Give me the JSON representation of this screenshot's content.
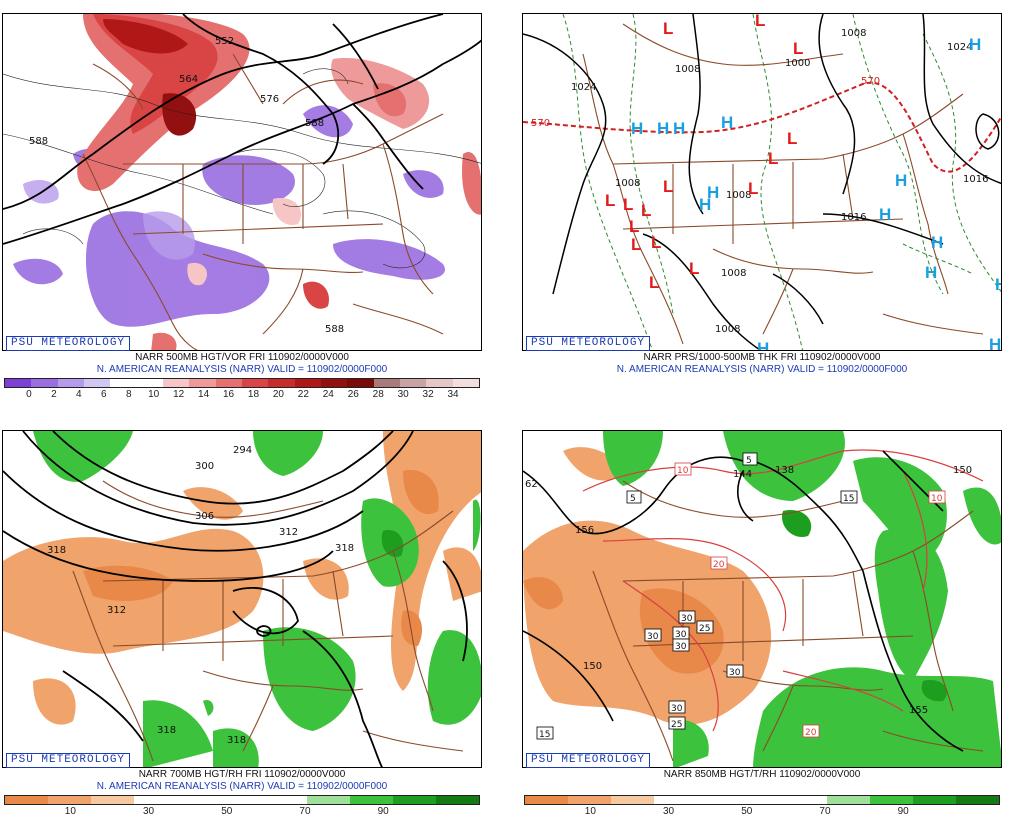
{
  "panels": [
    {
      "badge": "PSU METEOROLOGY",
      "line1": "NARR 500MB HGT/VOR FRI 110902/0000V000",
      "line2": "N. AMERICAN REANALYSIS (NARR) VALID = 110902/0000F000",
      "colorbar": {
        "colors": [
          "#7d3fd6",
          "#9a6ee0",
          "#b69bea",
          "#d2c6f2",
          "#ffffff",
          "#ffffff",
          "#f6c5c5",
          "#ee9a9a",
          "#e57070",
          "#d94545",
          "#c92a2a",
          "#b01818",
          "#931010",
          "#7a0a0a",
          "#a87a7a",
          "#c9a3a3",
          "#e6c7c7",
          "#f3dede"
        ],
        "ticks": [
          "0",
          "2",
          "4",
          "6",
          "8",
          "10",
          "12",
          "14",
          "16",
          "18",
          "20",
          "22",
          "24",
          "26",
          "28",
          "30",
          "32",
          "34"
        ]
      },
      "labels": [
        "552",
        "564",
        "576",
        "588",
        "588",
        "588"
      ]
    },
    {
      "badge": "PSU METEOROLOGY",
      "line1": "NARR PRS/1000-500MB THK FRI 110902/0000V000",
      "line2": "N. AMERICAN REANALYSIS (NARR) VALID = 110902/0000F000",
      "labels": [
        "1024",
        "1008",
        "1000",
        "1008",
        "1008",
        "1008",
        "1008",
        "1016",
        "1016",
        "1024",
        "570",
        "570",
        "1008"
      ],
      "H": "H",
      "L": "L"
    },
    {
      "badge": "PSU METEOROLOGY",
      "line1": "NARR 700MB HGT/RH FRI 110902/0000V000",
      "line2": "N. AMERICAN REANALYSIS (NARR) VALID = 110902/0000F000",
      "colorbar": {
        "colors": [
          "#e8894a",
          "#f0a36a",
          "#f7c9a0",
          "#ffffff",
          "#ffffff",
          "#ffffff",
          "#ffffff",
          "#9fe09a",
          "#3cc23c",
          "#1e9e1e",
          "#147a14"
        ],
        "ticks": [
          "10",
          "30",
          "50",
          "70",
          "90"
        ]
      },
      "labels": [
        "294",
        "300",
        "306",
        "312",
        "318",
        "318",
        "312",
        "318",
        "318"
      ]
    },
    {
      "badge": "PSU METEOROLOGY",
      "line1": "NARR 850MB HGT/T/RH 110902/0000V000",
      "colorbar": {
        "colors": [
          "#e8894a",
          "#f0a36a",
          "#f7c9a0",
          "#ffffff",
          "#ffffff",
          "#ffffff",
          "#ffffff",
          "#9fe09a",
          "#3cc23c",
          "#1e9e1e",
          "#147a14"
        ],
        "ticks": [
          "10",
          "30",
          "50",
          "70",
          "90"
        ]
      },
      "labels": [
        "62",
        "156",
        "144",
        "138",
        "150",
        "150",
        "155",
        "5",
        "5",
        "15",
        "10",
        "10",
        "20",
        "20",
        "25",
        "25",
        "30",
        "30",
        "30",
        "30",
        "30",
        "15",
        "20"
      ]
    }
  ]
}
